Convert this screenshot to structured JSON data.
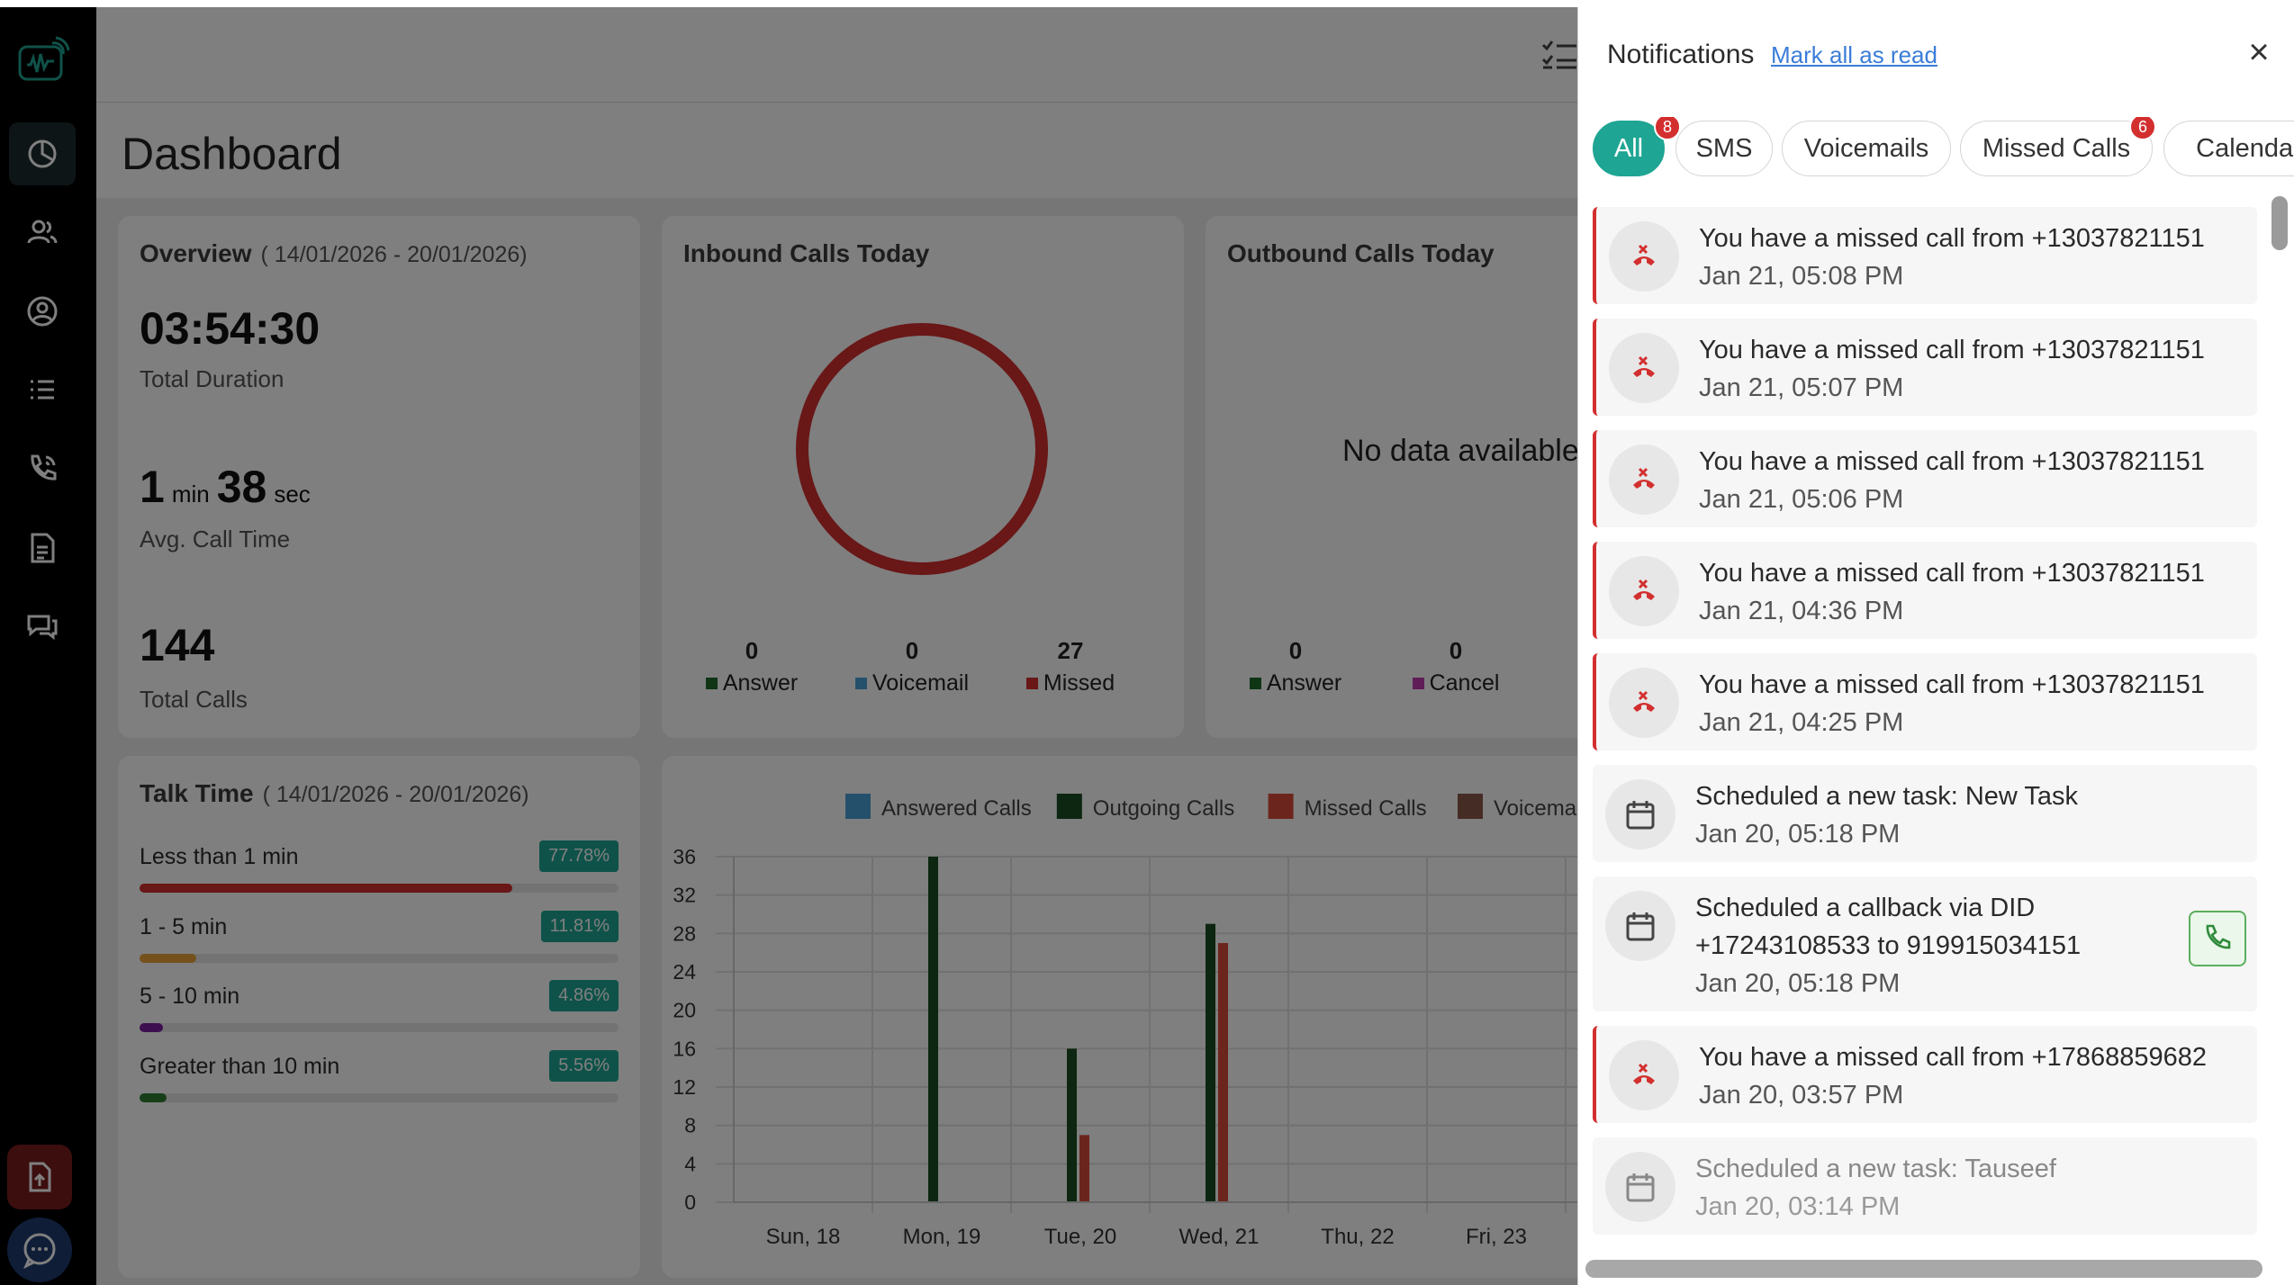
{
  "colors": {
    "accent": "#1ea593",
    "missed_red": "#d32f2f",
    "answer_green": "#1f6b2a",
    "voicemail_blue": "#4aa0d6",
    "cancel_pink": "#c03ab0",
    "link_blue": "#3b7dd8"
  },
  "dashboard": {
    "page_title": "Dashboard",
    "overview": {
      "title": "Overview",
      "range": "( 14/01/2026 - 20/01/2026)",
      "total_duration": "03:54:30",
      "total_duration_label": "Total Duration",
      "avg_min": "1",
      "min_unit": "min",
      "avg_sec": "38",
      "sec_unit": "sec",
      "avg_label": "Avg. Call Time",
      "total_calls": "144",
      "total_calls_label": "Total Calls"
    },
    "inbound": {
      "title": "Inbound Calls Today",
      "answer_count": "0",
      "answer_label": "Answer",
      "voicemail_count": "0",
      "voicemail_label": "Voicemail",
      "missed_count": "27",
      "missed_label": "Missed"
    },
    "outbound": {
      "title": "Outbound Calls Today",
      "no_data": "No data available",
      "answer_count": "0",
      "answer_label": "Answer",
      "cancel_count": "0",
      "cancel_label": "Cancel"
    },
    "talk_time": {
      "title": "Talk Time",
      "range": "( 14/01/2026 - 20/01/2026)",
      "rows": [
        {
          "label": "Less than 1 min",
          "pct": "77.78%",
          "value": 77.78,
          "color": "#d32f2f"
        },
        {
          "label": "1 - 5 min",
          "pct": "11.81%",
          "value": 11.81,
          "color": "#e8a33a"
        },
        {
          "label": "5 - 10 min",
          "pct": "4.86%",
          "value": 4.86,
          "color": "#7b1fa2"
        },
        {
          "label": "Greater than 10 min",
          "pct": "5.56%",
          "value": 5.56,
          "color": "#2e7d32"
        }
      ]
    }
  },
  "chart_data": {
    "type": "bar",
    "categories": [
      "Sun, 18",
      "Mon, 19",
      "Tue, 20",
      "Wed, 21",
      "Thu, 22",
      "Fri, 23"
    ],
    "series": [
      {
        "name": "Answered Calls",
        "color": "#4aa0d6",
        "values": [
          0,
          0,
          0,
          0,
          0,
          0
        ]
      },
      {
        "name": "Outgoing Calls",
        "color": "#1b4d22",
        "values": [
          0,
          36,
          16,
          29,
          0,
          0
        ]
      },
      {
        "name": "Missed Calls",
        "color": "#d84a3a",
        "values": [
          0,
          0,
          7,
          27,
          0,
          0
        ]
      },
      {
        "name": "Voicemail",
        "color": "#8a5a4a",
        "values": [
          0,
          0,
          0,
          0,
          0,
          0
        ]
      }
    ],
    "yticks": [
      "36",
      "32",
      "28",
      "24",
      "20",
      "16",
      "12",
      "8",
      "4",
      "0"
    ],
    "ylim": [
      0,
      36
    ],
    "grid": true,
    "legend": "top"
  },
  "notifications": {
    "title": "Notifications",
    "mark_all": "Mark all as read",
    "close": "×",
    "tabs": [
      {
        "label": "All",
        "badge": "8"
      },
      {
        "label": "SMS",
        "badge": ""
      },
      {
        "label": "Voicemails",
        "badge": ""
      },
      {
        "label": "Missed Calls",
        "badge": "6"
      },
      {
        "label": "Calendar",
        "badge": ""
      }
    ],
    "items": [
      {
        "kind": "missed",
        "text": "You have a missed call from +13037821151",
        "time": "Jan 21, 05:08 PM"
      },
      {
        "kind": "missed",
        "text": "You have a missed call from +13037821151",
        "time": "Jan 21, 05:07 PM"
      },
      {
        "kind": "missed",
        "text": "You have a missed call from +13037821151",
        "time": "Jan 21, 05:06 PM"
      },
      {
        "kind": "missed",
        "text": "You have a missed call from +13037821151",
        "time": "Jan 21, 04:36 PM"
      },
      {
        "kind": "missed",
        "text": "You have a missed call from +13037821151",
        "time": "Jan 21, 04:25 PM"
      },
      {
        "kind": "task",
        "text": "Scheduled a new task: New Task",
        "time": "Jan 20, 05:18 PM"
      },
      {
        "kind": "callback",
        "text": "Scheduled a callback via DID",
        "text2": "+17243108533 to 919915034151",
        "time": "Jan 20, 05:18 PM"
      },
      {
        "kind": "missed",
        "text": "You have a missed call from +17868859682",
        "time": "Jan 20, 03:57 PM"
      },
      {
        "kind": "task-faded",
        "text": "Scheduled a new task: Tauseef",
        "time": "Jan 20, 03:14 PM"
      }
    ]
  }
}
